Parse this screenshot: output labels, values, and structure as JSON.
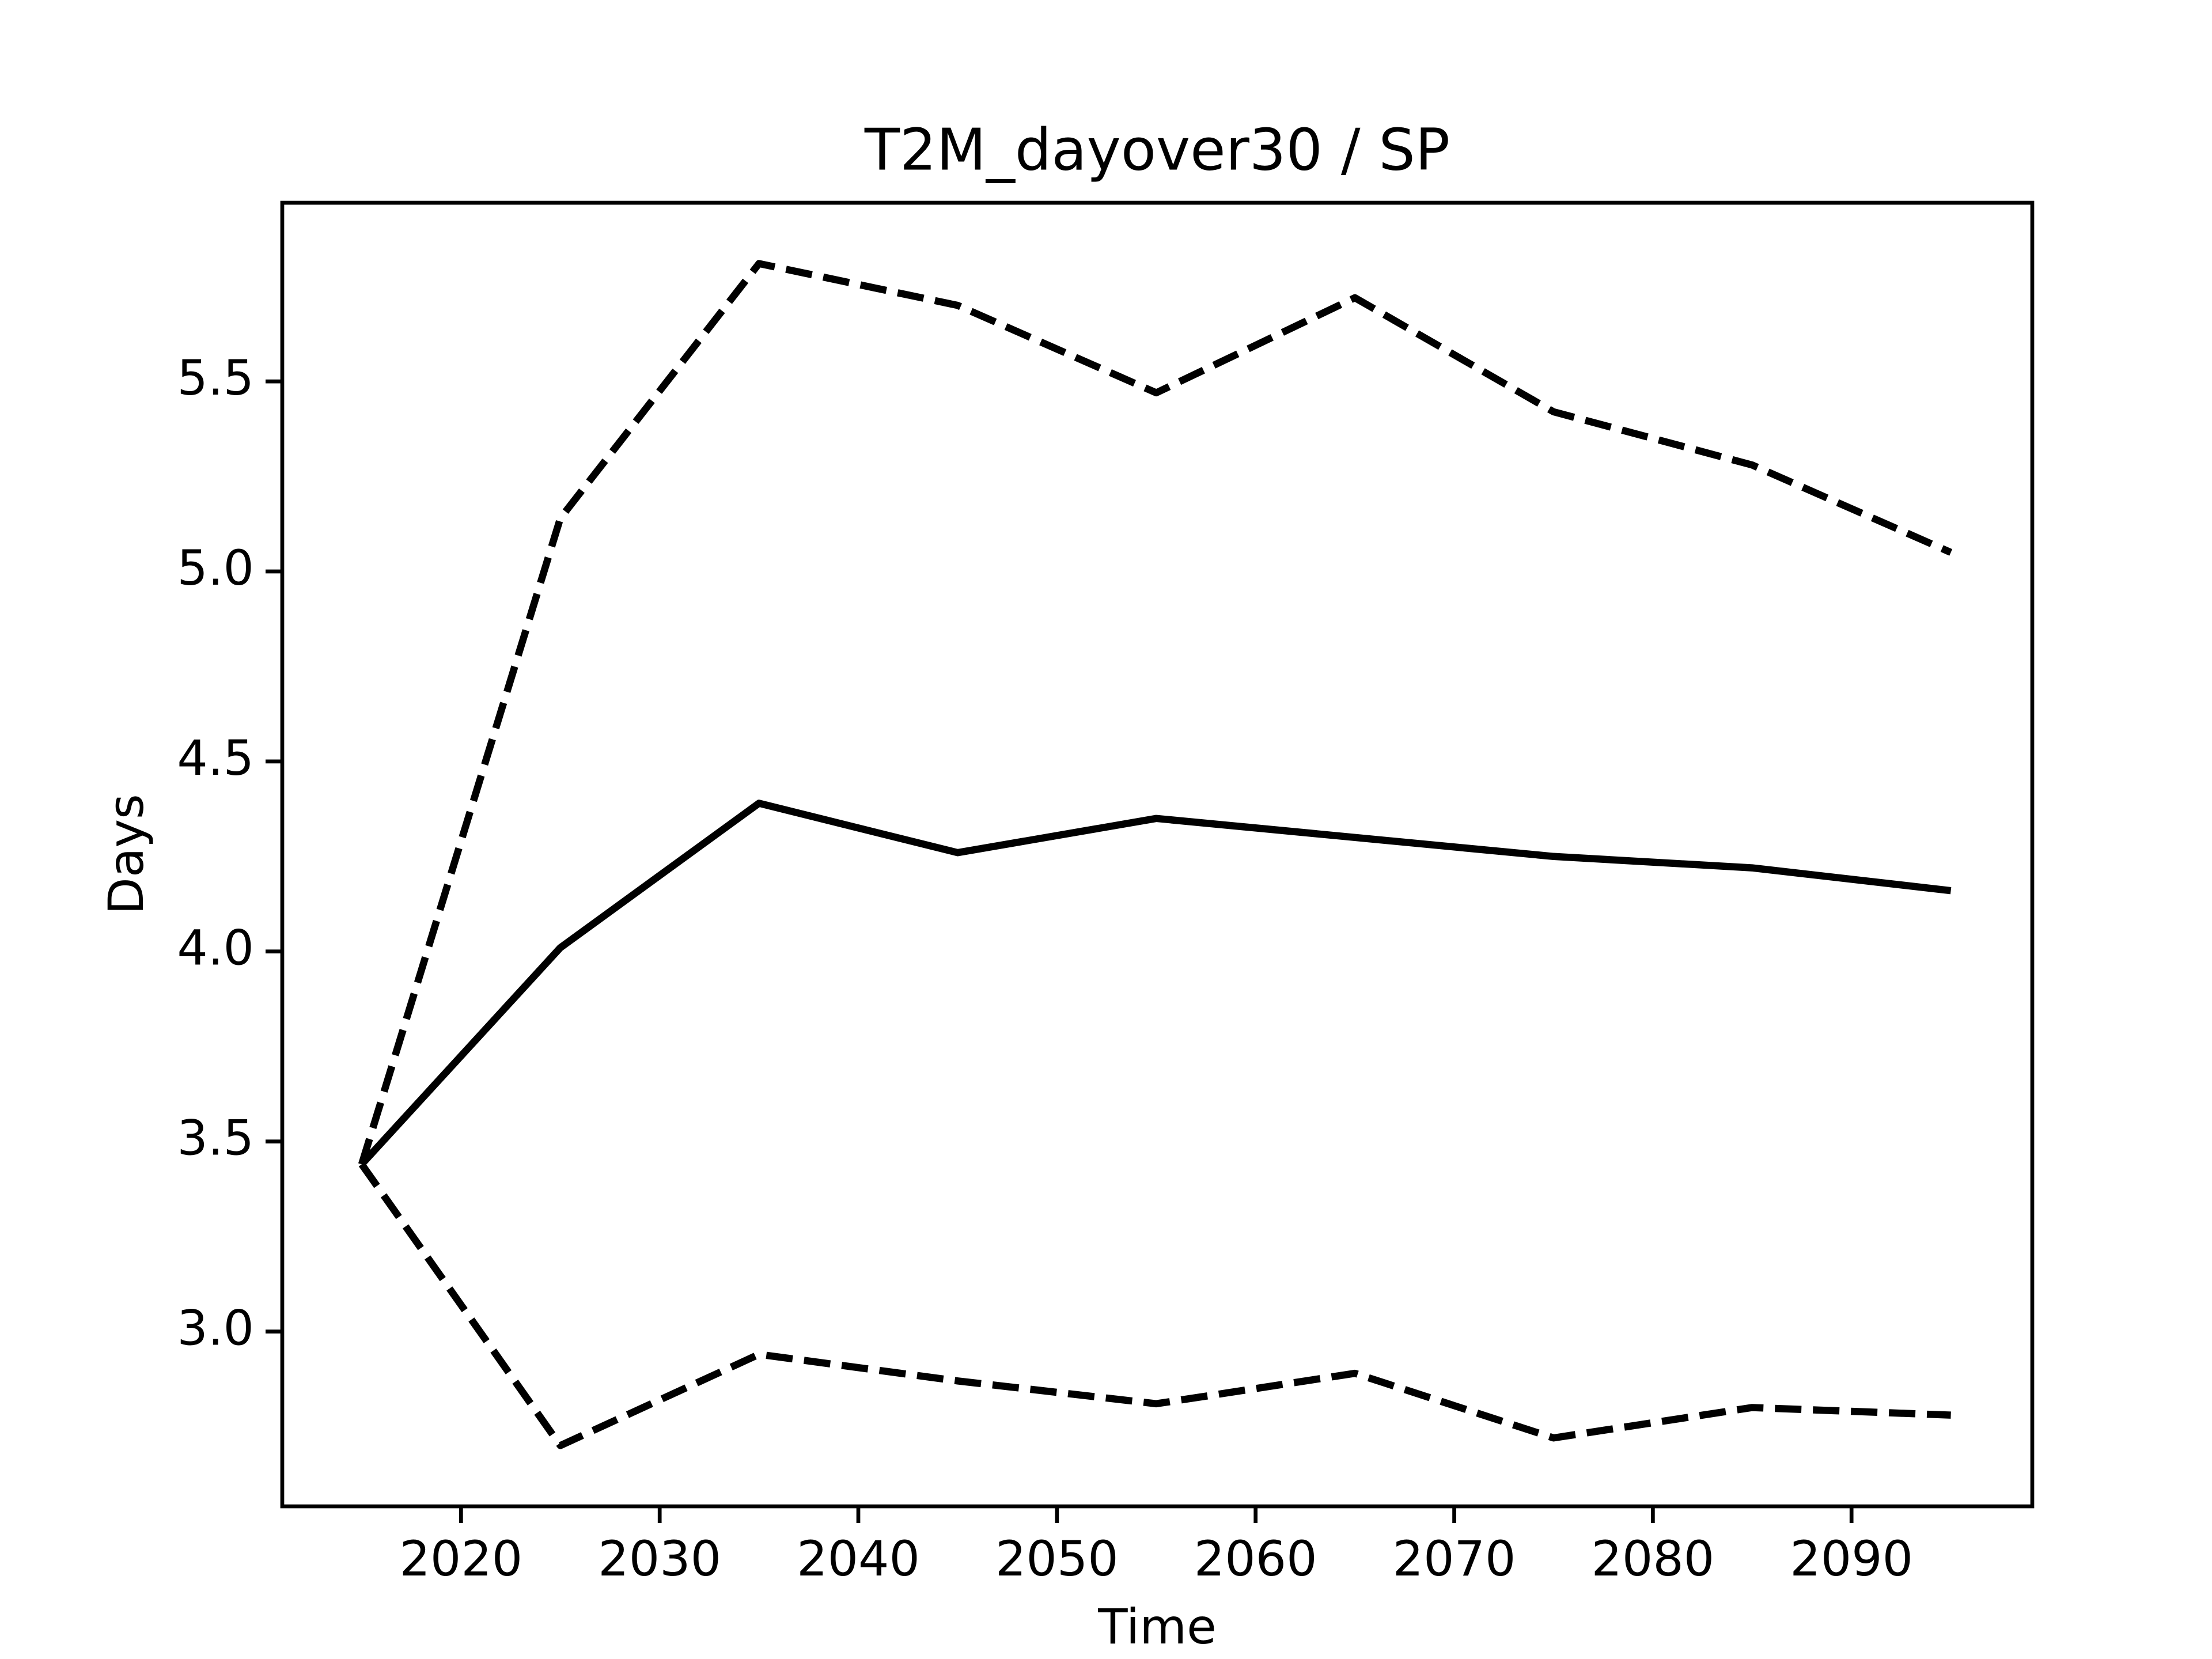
{
  "chart_data": {
    "type": "line",
    "title": "T2M_dayover30 / SP",
    "x_label": "Time",
    "y_label": "Days",
    "x": [
      2015,
      2025,
      2035,
      2045,
      2055,
      2065,
      2075,
      2085,
      2095
    ],
    "series": [
      {
        "color": "#000000",
        "linestyle": "solid",
        "values": [
          3.44,
          4.01,
          4.39,
          4.26,
          4.35,
          4.3,
          4.25,
          4.22,
          4.16
        ]
      },
      {
        "color": "#000000",
        "linestyle": "dashed",
        "values": [
          3.44,
          5.14,
          5.81,
          5.7,
          5.47,
          5.72,
          5.42,
          5.28,
          5.05
        ]
      },
      {
        "color": "#000000",
        "linestyle": "dashed",
        "values": [
          3.44,
          2.7,
          2.94,
          2.87,
          2.81,
          2.89,
          2.72,
          2.8,
          2.78
        ]
      }
    ],
    "xlim": [
      2011,
      2099.1
    ],
    "xticks": [
      2020,
      2030,
      2040,
      2050,
      2060,
      2070,
      2080,
      2090
    ],
    "ylim": [
      2.54,
      5.97
    ],
    "yticks": [
      {
        "value": 3.0,
        "label": "3.0"
      },
      3.5,
      {
        "value": 4.0,
        "label": "4.0"
      },
      4.5,
      {
        "value": 5.0,
        "label": "5.0"
      },
      5.5
    ],
    "grid": false
  }
}
